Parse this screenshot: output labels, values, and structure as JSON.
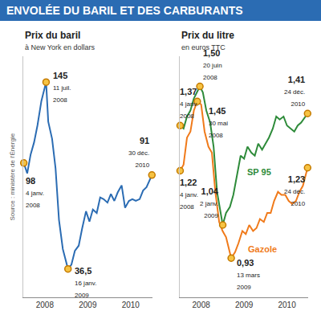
{
  "title": "ENVOLÉE DU BARIL ET DES CARBURANTS",
  "source": "Source : ministère de l'Énergie",
  "chart_data": [
    {
      "type": "line",
      "title": "Prix du baril",
      "subtitle": "à New York en dollars",
      "color": "#2b6cb3",
      "x": [
        2008.01,
        2008.09,
        2008.17,
        2008.25,
        2008.33,
        2008.42,
        2008.53,
        2008.58,
        2008.67,
        2008.75,
        2008.83,
        2008.92,
        2009.04,
        2009.12,
        2009.2,
        2009.29,
        2009.37,
        2009.46,
        2009.54,
        2009.62,
        2009.71,
        2009.79,
        2009.87,
        2009.96,
        2010.04,
        2010.12,
        2010.2,
        2010.29,
        2010.37,
        2010.46,
        2010.54,
        2010.62,
        2010.71,
        2010.79,
        2010.87,
        2010.995
      ],
      "values": [
        98,
        92,
        103,
        110,
        120,
        134,
        145,
        122,
        112,
        95,
        65,
        48,
        36.5,
        39,
        47,
        50,
        60,
        70,
        64,
        71,
        69,
        78,
        77,
        75,
        80,
        76,
        81,
        85,
        72,
        76,
        77,
        76,
        77,
        82,
        84,
        91
      ],
      "xlim": [
        2008,
        2011
      ],
      "xticks": [
        {
          "value": 2008.5,
          "label": "2008"
        },
        {
          "value": 2009.5,
          "label": "2009"
        },
        {
          "value": 2010.5,
          "label": "2010"
        }
      ],
      "ylim": [
        20,
        160
      ],
      "grid": false,
      "tick_labels": "x",
      "annotations": [
        {
          "x": 2008.01,
          "y": 98,
          "label": "98",
          "date": "4 janv. 2008"
        },
        {
          "x": 2008.53,
          "y": 145,
          "label": "145",
          "date": "11 juil. 2008"
        },
        {
          "x": 2009.04,
          "y": 36.5,
          "label": "36,5",
          "date": "16 janv. 2009"
        },
        {
          "x": 2010.995,
          "y": 91,
          "label": "91",
          "date": "30 déc. 2010"
        }
      ]
    },
    {
      "type": "line",
      "title": "Prix du litre",
      "subtitle": "en euros TTC",
      "series": [
        {
          "name": "SP 95",
          "color": "#2e8b3a",
          "x": [
            2008.01,
            2008.09,
            2008.17,
            2008.25,
            2008.33,
            2008.47,
            2008.54,
            2008.62,
            2008.71,
            2008.79,
            2008.87,
            2008.96,
            2009.003,
            2009.08,
            2009.17,
            2009.25,
            2009.33,
            2009.42,
            2009.5,
            2009.58,
            2009.67,
            2009.75,
            2009.83,
            2009.92,
            2010.0,
            2010.08,
            2010.17,
            2010.25,
            2010.33,
            2010.42,
            2010.5,
            2010.58,
            2010.67,
            2010.75,
            2010.83,
            2010.98
          ],
          "values": [
            1.37,
            1.36,
            1.4,
            1.42,
            1.46,
            1.5,
            1.48,
            1.42,
            1.38,
            1.3,
            1.15,
            1.08,
            1.04,
            1.08,
            1.1,
            1.14,
            1.2,
            1.27,
            1.26,
            1.3,
            1.28,
            1.27,
            1.31,
            1.29,
            1.31,
            1.33,
            1.36,
            1.4,
            1.39,
            1.4,
            1.37,
            1.36,
            1.35,
            1.37,
            1.38,
            1.41
          ]
        },
        {
          "name": "Gazole",
          "color": "#f07a1a",
          "x": [
            2008.01,
            2008.09,
            2008.17,
            2008.25,
            2008.33,
            2008.41,
            2008.5,
            2008.58,
            2008.67,
            2008.75,
            2008.83,
            2008.92,
            2009.0,
            2009.08,
            2009.2,
            2009.29,
            2009.37,
            2009.46,
            2009.54,
            2009.62,
            2009.71,
            2009.79,
            2009.87,
            2009.96,
            2010.04,
            2010.12,
            2010.2,
            2010.29,
            2010.37,
            2010.46,
            2010.54,
            2010.62,
            2010.71,
            2010.79,
            2010.87,
            2010.98
          ],
          "values": [
            1.22,
            1.24,
            1.33,
            1.35,
            1.42,
            1.45,
            1.44,
            1.35,
            1.3,
            1.28,
            1.15,
            1.05,
            1.02,
            1.0,
            0.93,
            0.95,
            0.98,
            1.02,
            1.01,
            1.04,
            1.02,
            1.03,
            1.06,
            1.05,
            1.08,
            1.08,
            1.12,
            1.15,
            1.14,
            1.14,
            1.12,
            1.11,
            1.12,
            1.15,
            1.17,
            1.23
          ]
        }
      ],
      "xlim": [
        2008,
        2011
      ],
      "xticks": [
        {
          "value": 2008.5,
          "label": "2008"
        },
        {
          "value": 2009.5,
          "label": "2009"
        },
        {
          "value": 2010.5,
          "label": "2010"
        }
      ],
      "ylim": [
        0.8,
        1.6
      ],
      "grid": false,
      "tick_labels": "x",
      "annotations": [
        {
          "x": 2008.01,
          "y": 1.37,
          "label": "1,37",
          "date": "4 janv. 2008"
        },
        {
          "x": 2008.47,
          "y": 1.5,
          "label": "1,50",
          "date": "20 juin 2008"
        },
        {
          "x": 2009.003,
          "y": 1.04,
          "label": "1,04",
          "date": "2 janv. 2009"
        },
        {
          "x": 2010.98,
          "y": 1.41,
          "label": "1,41",
          "date": "24 déc. 2010"
        },
        {
          "x": 2008.01,
          "y": 1.22,
          "label": "1,22",
          "date": "4 janv. 2008"
        },
        {
          "x": 2008.41,
          "y": 1.45,
          "label": "1,45",
          "date": "30 mai 2008"
        },
        {
          "x": 2009.2,
          "y": 0.93,
          "label": "0,93",
          "date": "13 mars 2009"
        },
        {
          "x": 2010.98,
          "y": 1.23,
          "label": "1,23",
          "date": "24 déc. 2010"
        }
      ]
    }
  ]
}
